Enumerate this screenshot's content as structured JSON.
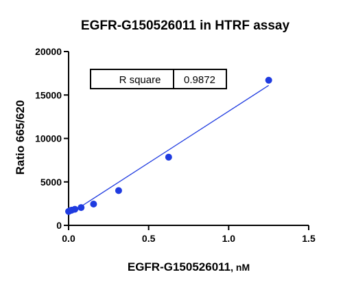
{
  "chart_data": {
    "type": "scatter",
    "title": "EGFR-G150526011 in HTRF assay",
    "xlabel_main": "EGFR-G150526011",
    "xlabel_unit": ", nM",
    "ylabel": "Ratio 665/620",
    "xlim": [
      0,
      1.5
    ],
    "ylim": [
      0,
      20000
    ],
    "x_ticks": [
      "0.0",
      "0.5",
      "1.0",
      "1.5"
    ],
    "y_ticks": [
      "0",
      "5000",
      "10000",
      "15000",
      "20000"
    ],
    "grid": false,
    "series": [
      {
        "x": [
          0.0,
          0.00977,
          0.0195,
          0.0391,
          0.0781,
          0.156,
          0.3125,
          0.625,
          1.25
        ],
        "y": [
          1600,
          1700,
          1750,
          1850,
          2050,
          2450,
          4000,
          7850,
          16700
        ],
        "color": "#1f3be0"
      }
    ],
    "fit_line": {
      "x": [
        0.0,
        1.25
      ],
      "y": [
        1250,
        16100
      ],
      "color": "#1f3be0"
    },
    "annotation": {
      "label": "R square",
      "value": "0.9872"
    }
  }
}
